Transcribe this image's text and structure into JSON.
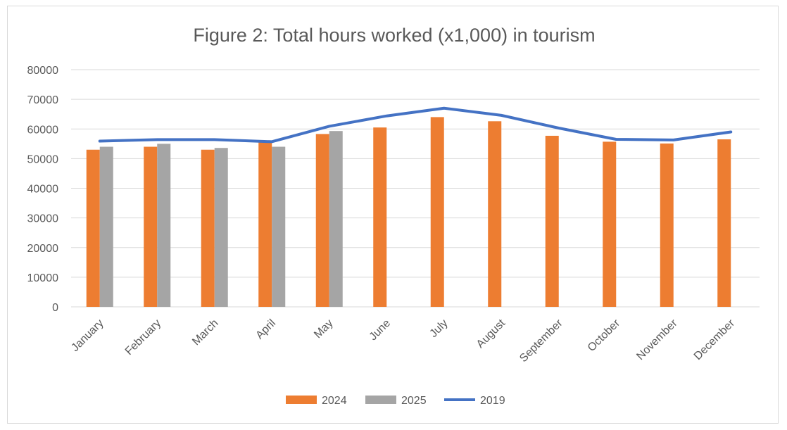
{
  "chart_data": {
    "type": "bar",
    "title": "Figure 2: Total hours worked (x1,000) in tourism",
    "xlabel": "",
    "ylabel": "",
    "ylim": [
      0,
      80000
    ],
    "yticks": [
      0,
      10000,
      20000,
      30000,
      40000,
      50000,
      60000,
      70000,
      80000
    ],
    "ytick_labels": [
      "0",
      "10000",
      "20000",
      "30000",
      "40000",
      "50000",
      "60000",
      "70000",
      "80000"
    ],
    "grid": true,
    "legend_position": "bottom",
    "categories": [
      "January",
      "February",
      "March",
      "April",
      "May",
      "June",
      "July",
      "August",
      "September",
      "October",
      "November",
      "December"
    ],
    "series": [
      {
        "name": "2024",
        "kind": "bar",
        "color": "#ed7d31",
        "values": [
          53000,
          54000,
          53000,
          55500,
          58300,
          60500,
          64000,
          62600,
          57700,
          55700,
          55100,
          56500
        ]
      },
      {
        "name": "2025",
        "kind": "bar",
        "color": "#a5a5a5",
        "values": [
          54000,
          55000,
          53600,
          54000,
          59300,
          null,
          null,
          null,
          null,
          null,
          null,
          null
        ]
      },
      {
        "name": "2019",
        "kind": "line",
        "color": "#4472c4",
        "values": [
          55900,
          56400,
          56400,
          55700,
          60900,
          64400,
          67000,
          64600,
          60300,
          56500,
          56300,
          59000
        ]
      }
    ]
  }
}
